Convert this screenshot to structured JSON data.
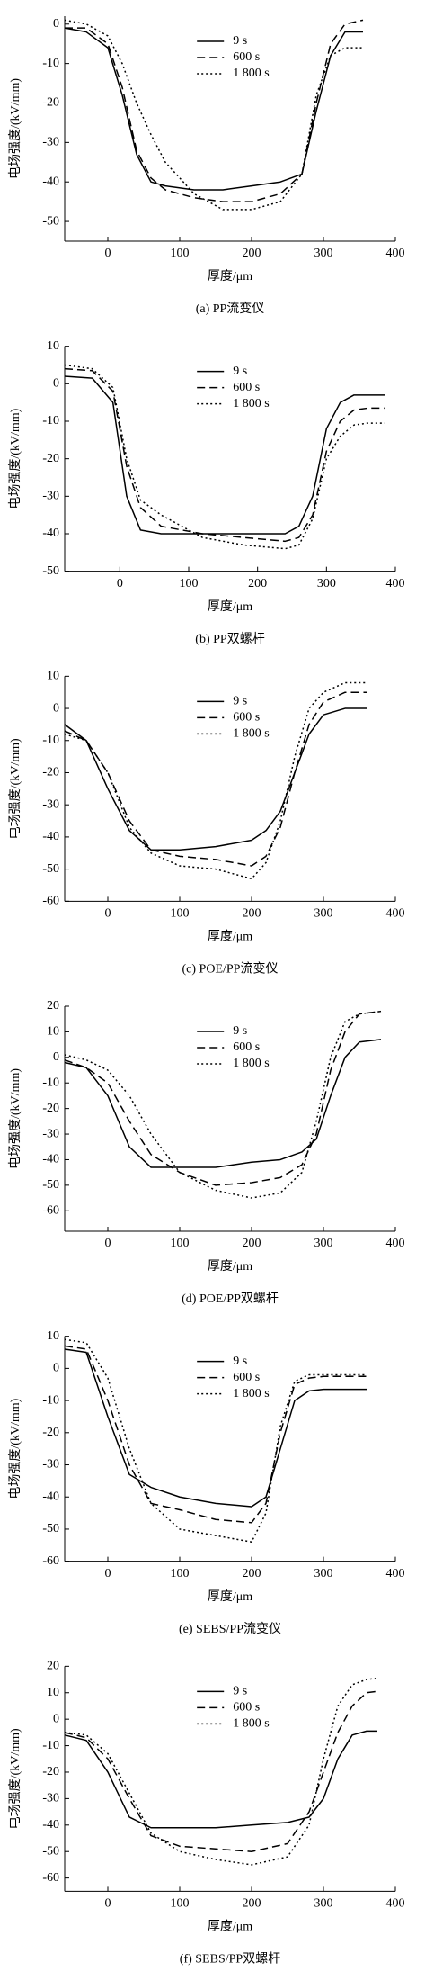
{
  "chart_data": [
    {
      "type": "line",
      "caption": "(a) PP流变仪",
      "xlabel": "厚度/μm",
      "ylabel": "电场强度/(kV/mm)",
      "legend": "upper center",
      "xlim": [
        -60,
        400
      ],
      "xticks": [
        0,
        100,
        200,
        300,
        400
      ],
      "ylim": [
        -55,
        2
      ],
      "yticks": [
        0,
        -10,
        -20,
        -30,
        -40,
        -50
      ],
      "x": [
        -60,
        -30,
        0,
        20,
        40,
        60,
        80,
        120,
        160,
        200,
        240,
        270,
        290,
        310,
        330,
        355
      ],
      "series": [
        {
          "name": "9 s",
          "color": "#000000",
          "dash": "solid",
          "values": [
            -1,
            -2,
            -6,
            -18,
            -33,
            -40,
            -41,
            -42,
            -42,
            -41,
            -40,
            -38,
            -22,
            -8,
            -2,
            -2
          ]
        },
        {
          "name": "600 s",
          "color": "#000000",
          "dash": "dashed",
          "values": [
            -1,
            -1,
            -5,
            -16,
            -32,
            -39,
            -42,
            -44,
            -45,
            -45,
            -43,
            -38,
            -20,
            -5,
            0,
            1
          ]
        },
        {
          "name": "1 800 s",
          "color": "#000000",
          "dash": "dotted",
          "values": [
            1,
            0,
            -3,
            -10,
            -20,
            -28,
            -35,
            -43,
            -47,
            -47,
            -45,
            -38,
            -18,
            -8,
            -6,
            -6
          ]
        }
      ]
    },
    {
      "type": "line",
      "caption": "(b) PP双螺杆",
      "xlabel": "厚度/μm",
      "ylabel": "电场强度/(kV/mm)",
      "legend": "upper center",
      "xlim": [
        -80,
        400
      ],
      "xticks": [
        0,
        100,
        200,
        300,
        400
      ],
      "ylim": [
        -50,
        10
      ],
      "yticks": [
        10,
        0,
        -10,
        -20,
        -30,
        -40,
        -50
      ],
      "x": [
        -80,
        -40,
        -10,
        10,
        30,
        60,
        120,
        180,
        240,
        260,
        280,
        300,
        320,
        340,
        360,
        385
      ],
      "series": [
        {
          "name": "9 s",
          "color": "#000000",
          "dash": "solid",
          "values": [
            2,
            1.5,
            -5,
            -30,
            -39,
            -40,
            -40,
            -40,
            -40,
            -38,
            -30,
            -12,
            -5,
            -3,
            -3,
            -3
          ]
        },
        {
          "name": "600 s",
          "color": "#000000",
          "dash": "dashed",
          "values": [
            4,
            3.5,
            -2,
            -22,
            -33,
            -38,
            -40,
            -41,
            -42,
            -41,
            -35,
            -18,
            -10,
            -7,
            -6.5,
            -6.5
          ]
        },
        {
          "name": "1 800 s",
          "color": "#000000",
          "dash": "dotted",
          "values": [
            5,
            4,
            -1,
            -20,
            -31,
            -35,
            -41,
            -43,
            -44,
            -43,
            -36,
            -20,
            -14,
            -11,
            -10.5,
            -10.5
          ]
        }
      ]
    },
    {
      "type": "line",
      "caption": "(c) POE/PP流变仪",
      "xlabel": "厚度/μm",
      "ylabel": "电场强度/(kV/mm)",
      "legend": "upper center",
      "xlim": [
        -60,
        400
      ],
      "xticks": [
        0,
        100,
        200,
        300,
        400
      ],
      "ylim": [
        -60,
        10
      ],
      "yticks": [
        10,
        0,
        -10,
        -20,
        -30,
        -40,
        -50,
        -60
      ],
      "x": [
        -60,
        -30,
        0,
        30,
        60,
        100,
        150,
        200,
        220,
        240,
        260,
        280,
        300,
        330,
        360
      ],
      "series": [
        {
          "name": "9 s",
          "color": "#000000",
          "dash": "solid",
          "values": [
            -5,
            -10,
            -25,
            -38,
            -44,
            -44,
            -43,
            -41,
            -38,
            -32,
            -20,
            -8,
            -2,
            0,
            0
          ]
        },
        {
          "name": "600 s",
          "color": "#000000",
          "dash": "dashed",
          "values": [
            -7,
            -10,
            -20,
            -35,
            -44,
            -46,
            -47,
            -49,
            -46,
            -37,
            -20,
            -5,
            2,
            5,
            5
          ]
        },
        {
          "name": "1 800 s",
          "color": "#000000",
          "dash": "dotted",
          "values": [
            -8,
            -10,
            -20,
            -37,
            -45,
            -49,
            -50,
            -53,
            -48,
            -35,
            -15,
            0,
            5,
            8,
            8
          ]
        }
      ]
    },
    {
      "type": "line",
      "caption": "(d) POE/PP双螺杆",
      "xlabel": "厚度/μm",
      "ylabel": "电场强度/(kV/mm)",
      "legend": "upper center",
      "xlim": [
        -60,
        400
      ],
      "xticks": [
        0,
        100,
        200,
        300,
        400
      ],
      "ylim": [
        -68,
        20
      ],
      "yticks": [
        20,
        10,
        0,
        -10,
        -20,
        -30,
        -40,
        -50,
        -60
      ],
      "x": [
        -60,
        -30,
        0,
        30,
        60,
        100,
        150,
        200,
        240,
        270,
        290,
        310,
        330,
        350,
        380
      ],
      "series": [
        {
          "name": "9 s",
          "color": "#000000",
          "dash": "solid",
          "values": [
            -2,
            -4,
            -15,
            -35,
            -43,
            -43,
            -43,
            -41,
            -40,
            -37,
            -32,
            -15,
            0,
            6,
            7
          ]
        },
        {
          "name": "600 s",
          "color": "#000000",
          "dash": "dashed",
          "values": [
            -1,
            -4,
            -10,
            -25,
            -38,
            -45,
            -50,
            -49,
            -47,
            -42,
            -30,
            -5,
            10,
            17,
            18
          ]
        },
        {
          "name": "1 800 s",
          "color": "#000000",
          "dash": "dotted",
          "values": [
            1,
            -1,
            -5,
            -15,
            -30,
            -45,
            -52,
            -55,
            -53,
            -45,
            -25,
            0,
            14,
            17,
            18
          ]
        }
      ]
    },
    {
      "type": "line",
      "caption": "(e) SEBS/PP流变仪",
      "xlabel": "厚度/μm",
      "ylabel": "电场强度/(kV/mm)",
      "legend": "upper center",
      "xlim": [
        -60,
        400
      ],
      "xticks": [
        0,
        100,
        200,
        300,
        400
      ],
      "ylim": [
        -60,
        10
      ],
      "yticks": [
        10,
        0,
        -10,
        -20,
        -30,
        -40,
        -50,
        -60
      ],
      "x": [
        -60,
        -30,
        0,
        30,
        60,
        100,
        150,
        200,
        220,
        240,
        260,
        280,
        300,
        330,
        360
      ],
      "series": [
        {
          "name": "9 s",
          "color": "#000000",
          "dash": "solid",
          "values": [
            6,
            5,
            -15,
            -33,
            -37,
            -40,
            -42,
            -43,
            -40,
            -25,
            -10,
            -7,
            -6.5,
            -6.5,
            -6.5
          ]
        },
        {
          "name": "600 s",
          "color": "#000000",
          "dash": "dashed",
          "values": [
            7,
            6,
            -10,
            -30,
            -42,
            -44,
            -47,
            -48,
            -42,
            -20,
            -5,
            -3,
            -2.5,
            -2.5,
            -2.5
          ]
        },
        {
          "name": "1 800 s",
          "color": "#000000",
          "dash": "dotted",
          "values": [
            9,
            8,
            -3,
            -25,
            -42,
            -50,
            -52,
            -54,
            -45,
            -18,
            -4,
            -2,
            -2,
            -2,
            -2
          ]
        }
      ]
    },
    {
      "type": "line",
      "caption": "(f) SEBS/PP双螺杆",
      "xlabel": "厚度/μm",
      "ylabel": "电场强度/(kV/mm)",
      "legend": "upper center",
      "xlim": [
        -60,
        400
      ],
      "xticks": [
        0,
        100,
        200,
        300,
        400
      ],
      "ylim": [
        -65,
        20
      ],
      "yticks": [
        20,
        10,
        0,
        -10,
        -20,
        -30,
        -40,
        -50,
        -60
      ],
      "x": [
        -60,
        -30,
        0,
        30,
        60,
        100,
        150,
        200,
        250,
        280,
        300,
        320,
        340,
        360,
        375
      ],
      "series": [
        {
          "name": "9 s",
          "color": "#000000",
          "dash": "solid",
          "values": [
            -6,
            -8,
            -20,
            -37,
            -41,
            -41,
            -41,
            -40,
            -39,
            -37,
            -30,
            -15,
            -6,
            -4.5,
            -4.5
          ]
        },
        {
          "name": "600 s",
          "color": "#000000",
          "dash": "dashed",
          "values": [
            -5,
            -7,
            -15,
            -30,
            -44,
            -48,
            -49,
            -50,
            -47,
            -35,
            -20,
            -5,
            5,
            10,
            10.5
          ]
        },
        {
          "name": "1 800 s",
          "color": "#000000",
          "dash": "dotted",
          "values": [
            -5,
            -6,
            -13,
            -28,
            -43,
            -50,
            -53,
            -55,
            -52,
            -40,
            -15,
            5,
            13,
            15,
            15.5
          ]
        }
      ]
    }
  ]
}
